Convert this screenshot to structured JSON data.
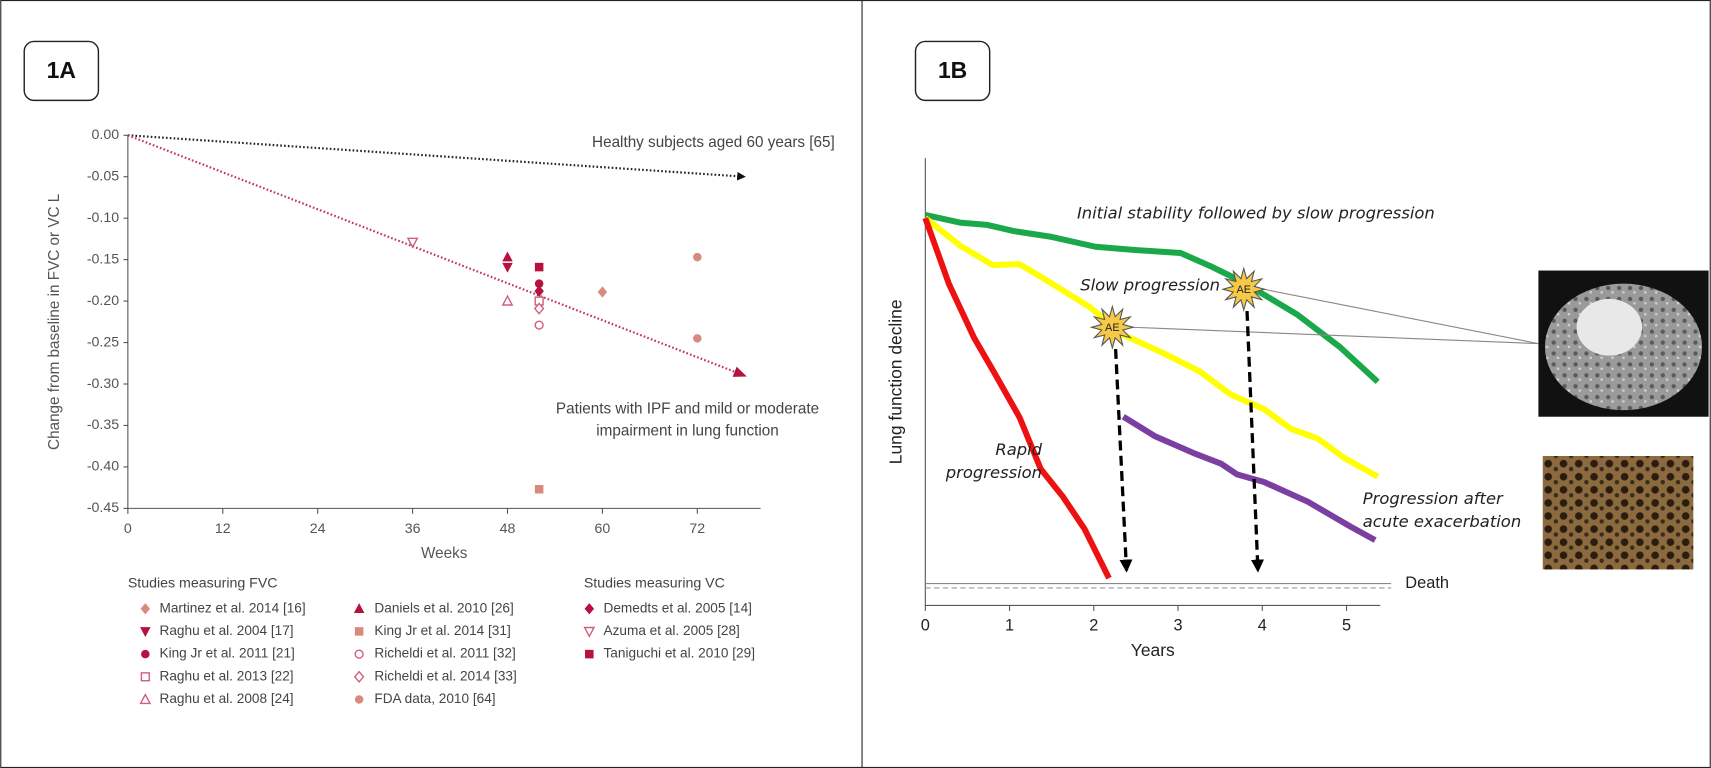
{
  "chart_data": [
    {
      "type": "scatter",
      "title": "1A",
      "xlabel": "Weeks",
      "ylabel": "Change from baseline in FVC or VC L",
      "xlim": [
        0,
        80
      ],
      "xticks": [
        0,
        12,
        24,
        36,
        48,
        60,
        72
      ],
      "ylim": [
        -0.45,
        0
      ],
      "yticks": [
        {
          "value": 0,
          "label": "0.00"
        },
        -0.05,
        {
          "value": -0.1,
          "label": "-0.10"
        },
        -0.15,
        {
          "value": -0.2,
          "label": "-0.20"
        },
        -0.25,
        {
          "value": -0.3,
          "label": "-0.30"
        },
        -0.35,
        {
          "value": -0.4,
          "label": "-0.40"
        },
        -0.45
      ],
      "trend_lines": [
        {
          "x": [
            0,
            78
          ],
          "values": [
            0,
            -0.05
          ],
          "color": "#222222",
          "annotation": "Healthy subjects aged 60 years [65]"
        },
        {
          "x": [
            0,
            78
          ],
          "values": [
            0,
            -0.29
          ],
          "color": "#c0335a",
          "annotation": "Patients with IPF and mild or moderate impairment in lung function"
        }
      ],
      "legend_titles": [
        "Studies measuring FVC",
        "Studies measuring VC"
      ],
      "series": [
        {
          "name": "Martinez et al. 2014 [16]",
          "group": 0,
          "marker": "diamond",
          "color": "#d98a7e",
          "x": [
            60
          ],
          "values": [
            -0.189
          ]
        },
        {
          "name": "Raghu et al. 2004 [17]",
          "group": 0,
          "marker": "triangle-down",
          "color": "#b5123f",
          "x": [
            48
          ],
          "values": [
            -0.159
          ]
        },
        {
          "name": "King Jr et al. 2011 [21]",
          "group": 0,
          "marker": "circle",
          "color": "#b5123f",
          "x": [
            52
          ],
          "values": [
            -0.179
          ]
        },
        {
          "name": "Raghu et al. 2013 [22]",
          "group": 0,
          "marker": "square-open",
          "color": "#d0607a",
          "x": [
            52
          ],
          "values": [
            -0.2
          ]
        },
        {
          "name": "Raghu et al. 2008 [24]",
          "group": 0,
          "marker": "triangle-open",
          "color": "#d0607a",
          "x": [
            48
          ],
          "values": [
            -0.2
          ]
        },
        {
          "name": "Daniels et al. 2010 [26]",
          "group": 0,
          "marker": "triangle",
          "color": "#b5123f",
          "x": [
            48
          ],
          "values": [
            -0.147
          ]
        },
        {
          "name": "King Jr et al. 2014 [31]",
          "group": 0,
          "marker": "square",
          "color": "#d98a7e",
          "x": [
            52
          ],
          "values": [
            -0.427
          ]
        },
        {
          "name": "Richeldi et al. 2011 [32]",
          "group": 0,
          "marker": "circle-open",
          "color": "#d0607a",
          "x": [
            52
          ],
          "values": [
            -0.229
          ]
        },
        {
          "name": "Richeldi et al. 2014 [33]",
          "group": 0,
          "marker": "diamond-open",
          "color": "#d0607a",
          "x": [
            52
          ],
          "values": [
            -0.209
          ]
        },
        {
          "name": "FDA data, 2010 [64]",
          "group": 0,
          "marker": "circle",
          "color": "#d98a7e",
          "x": [
            72,
            72
          ],
          "values": [
            -0.147,
            -0.245
          ]
        },
        {
          "name": "Demedts et al. 2005 [14]",
          "group": 1,
          "marker": "diamond",
          "color": "#b5123f",
          "x": [
            52
          ],
          "values": [
            -0.188
          ]
        },
        {
          "name": "Azuma et al. 2005 [28]",
          "group": 1,
          "marker": "triangle-down-open",
          "color": "#d0607a",
          "x": [
            36
          ],
          "values": [
            -0.129
          ]
        },
        {
          "name": "Taniguchi et al. 2010 [29]",
          "group": 1,
          "marker": "square",
          "color": "#b5123f",
          "x": [
            52
          ],
          "values": [
            -0.159
          ]
        }
      ]
    },
    {
      "type": "line",
      "title": "1B",
      "xlabel": "Years",
      "ylabel": "Lung function decline",
      "xlim": [
        0,
        5.4
      ],
      "xticks": [
        0,
        1,
        2,
        3,
        4,
        5
      ],
      "ylim": [
        0,
        100
      ],
      "series": [
        {
          "name": "Initial stability followed by slow progression",
          "color": "#1aa84b",
          "x": [
            0,
            0.41,
            0.73,
            1.05,
            1.5,
            2.02,
            2.47,
            3.03,
            3.38,
            3.76,
            4.41,
            4.92,
            5.37
          ],
          "values": [
            87.3,
            85.6,
            85.1,
            83.7,
            82.4,
            80.2,
            79.5,
            78.8,
            75.9,
            72.4,
            65.1,
            57.8,
            50.0
          ]
        },
        {
          "name": "Slow progression",
          "color": "#ffff00",
          "x": [
            0,
            0.41,
            0.8,
            1.12,
            1.44,
            1.96,
            2.35,
            2.86,
            3.25,
            3.63,
            4.02,
            4.34,
            4.66,
            4.98,
            5.37
          ],
          "values": [
            86.6,
            80.5,
            76.1,
            76.3,
            72.7,
            66.6,
            60.5,
            56.1,
            52.4,
            47.1,
            43.9,
            39.5,
            37.3,
            32.9,
            28.8
          ]
        },
        {
          "name": "Rapid progression",
          "color": "#ee1111",
          "x": [
            0,
            0.28,
            0.58,
            0.82,
            1.12,
            1.37,
            1.63,
            1.89,
            2.18
          ],
          "values": [
            86.6,
            71.9,
            59.8,
            52.0,
            42.0,
            30.5,
            24.4,
            17.1,
            6.1
          ]
        },
        {
          "name": "Progression after acute exacerbation",
          "color": "#7a3fa0",
          "x": [
            2.35,
            2.73,
            3.18,
            3.51,
            3.7,
            4.02,
            4.54,
            5.05,
            5.34
          ],
          "values": [
            42.2,
            37.8,
            34.1,
            31.7,
            29.3,
            27.6,
            23.2,
            17.6,
            14.6
          ]
        }
      ],
      "events": [
        {
          "label": "AE",
          "x": 2.22,
          "y": 62.2
        },
        {
          "label": "AE",
          "x": 3.78,
          "y": 70.7
        }
      ],
      "death": {
        "label": "Death",
        "value": 4.4
      }
    }
  ]
}
